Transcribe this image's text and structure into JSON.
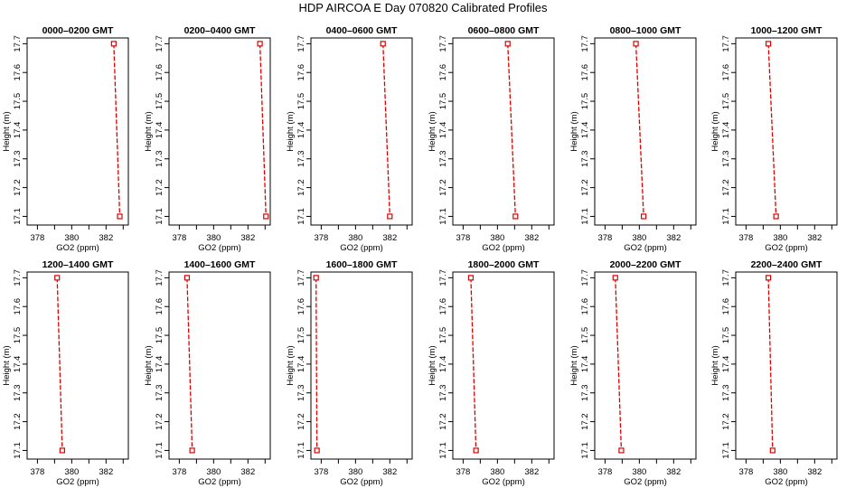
{
  "figure": {
    "title": "HDP  AIRCOA E  Day 070820  Calibrated Profiles"
  },
  "colors": {
    "line": "#dd0000",
    "marker": "#dd0000",
    "axis": "#000000"
  },
  "chart_data": [
    {
      "type": "line",
      "title": "0000–0200 GMT",
      "xlabel": "GO2 (ppm)",
      "ylabel": "Height (m)",
      "xlim": [
        377.4,
        383.3
      ],
      "ylim": [
        17.07,
        17.72
      ],
      "xticks": [
        "378",
        "380",
        "382"
      ],
      "yticks": [
        "17.1",
        "17.2",
        "17.3",
        "17.4",
        "17.5",
        "17.6",
        "17.7"
      ],
      "points": [
        {
          "x": 382.45,
          "y": 17.7
        },
        {
          "x": 382.8,
          "y": 17.1
        }
      ],
      "markers": "open-square"
    },
    {
      "type": "line",
      "title": "0200–0400 GMT",
      "xlabel": "GO2 (ppm)",
      "ylabel": "Height (m)",
      "xlim": [
        377.4,
        383.3
      ],
      "ylim": [
        17.07,
        17.72
      ],
      "xticks": [
        "378",
        "380",
        "382"
      ],
      "yticks": [
        "17.1",
        "17.2",
        "17.3",
        "17.4",
        "17.5",
        "17.6",
        "17.7"
      ],
      "points": [
        {
          "x": 382.7,
          "y": 17.7
        },
        {
          "x": 383.05,
          "y": 17.1
        }
      ],
      "markers": "open-square"
    },
    {
      "type": "line",
      "title": "0400–0600 GMT",
      "xlabel": "GO2 (ppm)",
      "ylabel": "Height (m)",
      "xlim": [
        377.4,
        383.3
      ],
      "ylim": [
        17.07,
        17.72
      ],
      "xticks": [
        "378",
        "380",
        "382"
      ],
      "yticks": [
        "17.1",
        "17.2",
        "17.3",
        "17.4",
        "17.5",
        "17.6",
        "17.7"
      ],
      "points": [
        {
          "x": 381.6,
          "y": 17.7
        },
        {
          "x": 382.0,
          "y": 17.1
        }
      ],
      "markers": "open-square"
    },
    {
      "type": "line",
      "title": "0600–0800 GMT",
      "xlabel": "GO2 (ppm)",
      "ylabel": "Height (m)",
      "xlim": [
        377.4,
        383.3
      ],
      "ylim": [
        17.07,
        17.72
      ],
      "xticks": [
        "378",
        "380",
        "382"
      ],
      "yticks": [
        "17.1",
        "17.2",
        "17.3",
        "17.4",
        "17.5",
        "17.6",
        "17.7"
      ],
      "points": [
        {
          "x": 380.6,
          "y": 17.7
        },
        {
          "x": 381.05,
          "y": 17.1
        }
      ],
      "markers": "open-square"
    },
    {
      "type": "line",
      "title": "0800–1000 GMT",
      "xlabel": "GO2 (ppm)",
      "ylabel": "Height (m)",
      "xlim": [
        377.4,
        383.3
      ],
      "ylim": [
        17.07,
        17.72
      ],
      "xticks": [
        "378",
        "380",
        "382"
      ],
      "yticks": [
        "17.1",
        "17.2",
        "17.3",
        "17.4",
        "17.5",
        "17.6",
        "17.7"
      ],
      "points": [
        {
          "x": 379.8,
          "y": 17.7
        },
        {
          "x": 380.25,
          "y": 17.1
        }
      ],
      "markers": "open-square"
    },
    {
      "type": "line",
      "title": "1000–1200 GMT",
      "xlabel": "GO2 (ppm)",
      "ylabel": "Height (m)",
      "xlim": [
        377.4,
        383.3
      ],
      "ylim": [
        17.07,
        17.72
      ],
      "xticks": [
        "378",
        "380",
        "382"
      ],
      "yticks": [
        "17.1",
        "17.2",
        "17.3",
        "17.4",
        "17.5",
        "17.6",
        "17.7"
      ],
      "points": [
        {
          "x": 379.3,
          "y": 17.7
        },
        {
          "x": 379.75,
          "y": 17.1
        }
      ],
      "markers": "open-square"
    },
    {
      "type": "line",
      "title": "1200–1400 GMT",
      "xlabel": "GO2 (ppm)",
      "ylabel": "Height (m)",
      "xlim": [
        377.4,
        383.3
      ],
      "ylim": [
        17.07,
        17.72
      ],
      "xticks": [
        "378",
        "380",
        "382"
      ],
      "yticks": [
        "17.1",
        "17.2",
        "17.3",
        "17.4",
        "17.5",
        "17.6",
        "17.7"
      ],
      "points": [
        {
          "x": 379.15,
          "y": 17.7
        },
        {
          "x": 379.45,
          "y": 17.1
        }
      ],
      "markers": "open-square"
    },
    {
      "type": "line",
      "title": "1400–1600 GMT",
      "xlabel": "GO2 (ppm)",
      "ylabel": "Height (m)",
      "xlim": [
        377.4,
        383.3
      ],
      "ylim": [
        17.07,
        17.72
      ],
      "xticks": [
        "378",
        "380",
        "382"
      ],
      "yticks": [
        "17.1",
        "17.2",
        "17.3",
        "17.4",
        "17.5",
        "17.6",
        "17.7"
      ],
      "points": [
        {
          "x": 378.45,
          "y": 17.7
        },
        {
          "x": 378.75,
          "y": 17.1
        }
      ],
      "markers": "open-square"
    },
    {
      "type": "line",
      "title": "1600–1800 GMT",
      "xlabel": "GO2 (ppm)",
      "ylabel": "Height (m)",
      "xlim": [
        377.4,
        383.3
      ],
      "ylim": [
        17.07,
        17.72
      ],
      "xticks": [
        "378",
        "380",
        "382"
      ],
      "yticks": [
        "17.1",
        "17.2",
        "17.3",
        "17.4",
        "17.5",
        "17.6",
        "17.7"
      ],
      "points": [
        {
          "x": 377.7,
          "y": 17.7
        },
        {
          "x": 377.75,
          "y": 17.1
        }
      ],
      "markers": "open-square"
    },
    {
      "type": "line",
      "title": "1800–2000 GMT",
      "xlabel": "GO2 (ppm)",
      "ylabel": "Height (m)",
      "xlim": [
        377.4,
        383.3
      ],
      "ylim": [
        17.07,
        17.72
      ],
      "xticks": [
        "378",
        "380",
        "382"
      ],
      "yticks": [
        "17.1",
        "17.2",
        "17.3",
        "17.4",
        "17.5",
        "17.6",
        "17.7"
      ],
      "points": [
        {
          "x": 378.45,
          "y": 17.7
        },
        {
          "x": 378.75,
          "y": 17.1
        }
      ],
      "markers": "open-square"
    },
    {
      "type": "line",
      "title": "2000–2200 GMT",
      "xlabel": "GO2 (ppm)",
      "ylabel": "Height (m)",
      "xlim": [
        377.4,
        383.3
      ],
      "ylim": [
        17.07,
        17.72
      ],
      "xticks": [
        "378",
        "380",
        "382"
      ],
      "yticks": [
        "17.1",
        "17.2",
        "17.3",
        "17.4",
        "17.5",
        "17.6",
        "17.7"
      ],
      "points": [
        {
          "x": 378.6,
          "y": 17.7
        },
        {
          "x": 378.95,
          "y": 17.1
        }
      ],
      "markers": "open-square"
    },
    {
      "type": "line",
      "title": "2200–2400 GMT",
      "xlabel": "GO2 (ppm)",
      "ylabel": "Height (m)",
      "xlim": [
        377.4,
        383.3
      ],
      "ylim": [
        17.07,
        17.72
      ],
      "xticks": [
        "378",
        "380",
        "382"
      ],
      "yticks": [
        "17.1",
        "17.2",
        "17.3",
        "17.4",
        "17.5",
        "17.6",
        "17.7"
      ],
      "points": [
        {
          "x": 379.3,
          "y": 17.7
        },
        {
          "x": 379.55,
          "y": 17.1
        }
      ],
      "markers": "open-square"
    }
  ]
}
